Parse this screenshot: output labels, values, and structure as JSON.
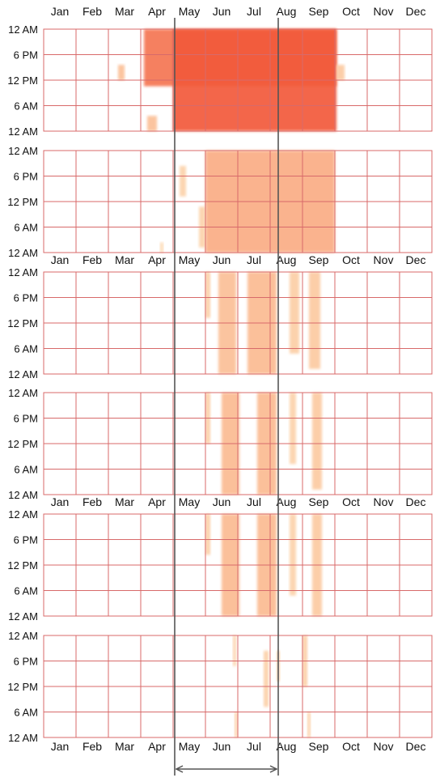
{
  "chart_data": {
    "type": "heatmap",
    "title": "",
    "x_categories": [
      "Jan",
      "Feb",
      "Mar",
      "Apr",
      "May",
      "Jun",
      "Jul",
      "Aug",
      "Sep",
      "Oct",
      "Nov",
      "Dec"
    ],
    "y_tick_labels": [
      "12 AM",
      "6 PM",
      "12 PM",
      "6 AM",
      "12 AM"
    ],
    "grid": true,
    "grid_color": "#d86a6a",
    "colors": {
      "low": "#fde7bf",
      "mid": "#fbb68d",
      "high": "#f25a3a"
    },
    "panels": [
      {
        "blobs": [
          {
            "m0": 3.1,
            "m1": 9.05,
            "t0": 0.0,
            "t1": 0.56,
            "v": 0.85
          },
          {
            "m0": 4.0,
            "m1": 9.05,
            "t0": 0.0,
            "t1": 1.0,
            "v": 1.0
          },
          {
            "m0": 2.3,
            "m1": 2.5,
            "t0": 0.35,
            "t1": 0.5,
            "v": 0.4
          },
          {
            "m0": 3.2,
            "m1": 3.5,
            "t0": 0.85,
            "t1": 1.0,
            "v": 0.4
          },
          {
            "m0": 9.05,
            "m1": 9.3,
            "t0": 0.35,
            "t1": 0.5,
            "v": 0.3
          }
        ]
      },
      {
        "blobs": [
          {
            "m0": 5.0,
            "m1": 9.0,
            "t0": 0.0,
            "t1": 1.0,
            "v": 0.55
          },
          {
            "m0": 4.2,
            "m1": 4.4,
            "t0": 0.15,
            "t1": 0.45,
            "v": 0.2
          },
          {
            "m0": 4.8,
            "m1": 5.0,
            "t0": 0.55,
            "t1": 0.95,
            "v": 0.2
          },
          {
            "m0": 3.6,
            "m1": 3.7,
            "t0": 0.9,
            "t1": 1.0,
            "v": 0.15
          }
        ]
      },
      {
        "blobs": [
          {
            "m0": 5.0,
            "m1": 5.15,
            "t0": 0.0,
            "t1": 0.45,
            "v": 0.25
          },
          {
            "m0": 5.4,
            "m1": 5.95,
            "t0": 0.0,
            "t1": 1.0,
            "v": 0.4
          },
          {
            "m0": 6.3,
            "m1": 7.2,
            "t0": 0.0,
            "t1": 1.0,
            "v": 0.45
          },
          {
            "m0": 7.6,
            "m1": 7.9,
            "t0": 0.0,
            "t1": 0.8,
            "v": 0.25
          },
          {
            "m0": 8.2,
            "m1": 8.55,
            "t0": 0.0,
            "t1": 0.95,
            "v": 0.3
          }
        ]
      },
      {
        "blobs": [
          {
            "m0": 5.0,
            "m1": 5.15,
            "t0": 0.0,
            "t1": 0.5,
            "v": 0.25
          },
          {
            "m0": 5.5,
            "m1": 6.05,
            "t0": 0.0,
            "t1": 1.0,
            "v": 0.45
          },
          {
            "m0": 6.6,
            "m1": 7.2,
            "t0": 0.0,
            "t1": 1.0,
            "v": 0.45
          },
          {
            "m0": 7.6,
            "m1": 7.8,
            "t0": 0.0,
            "t1": 0.7,
            "v": 0.2
          },
          {
            "m0": 8.3,
            "m1": 8.6,
            "t0": 0.0,
            "t1": 0.95,
            "v": 0.3
          }
        ]
      },
      {
        "blobs": [
          {
            "m0": 5.0,
            "m1": 5.15,
            "t0": 0.0,
            "t1": 0.4,
            "v": 0.25
          },
          {
            "m0": 5.5,
            "m1": 6.05,
            "t0": 0.0,
            "t1": 1.0,
            "v": 0.45
          },
          {
            "m0": 6.6,
            "m1": 7.2,
            "t0": 0.0,
            "t1": 1.0,
            "v": 0.45
          },
          {
            "m0": 7.6,
            "m1": 7.8,
            "t0": 0.0,
            "t1": 0.8,
            "v": 0.2
          },
          {
            "m0": 8.3,
            "m1": 8.6,
            "t0": 0.0,
            "t1": 1.0,
            "v": 0.3
          }
        ]
      },
      {
        "blobs": [
          {
            "m0": 5.85,
            "m1": 5.95,
            "t0": 0.0,
            "t1": 0.3,
            "v": 0.2
          },
          {
            "m0": 5.9,
            "m1": 6.0,
            "t0": 0.75,
            "t1": 1.0,
            "v": 0.2
          },
          {
            "m0": 6.8,
            "m1": 6.95,
            "t0": 0.15,
            "t1": 0.7,
            "v": 0.25
          },
          {
            "m0": 7.2,
            "m1": 7.3,
            "t0": 0.15,
            "t1": 0.45,
            "v": 0.2
          },
          {
            "m0": 8.0,
            "m1": 8.15,
            "t0": 0.0,
            "t1": 0.5,
            "v": 0.25
          },
          {
            "m0": 8.15,
            "m1": 8.25,
            "t0": 0.75,
            "t1": 1.0,
            "v": 0.2
          }
        ]
      }
    ],
    "highlight": {
      "start_month": 4.05,
      "end_month": 7.25
    }
  }
}
